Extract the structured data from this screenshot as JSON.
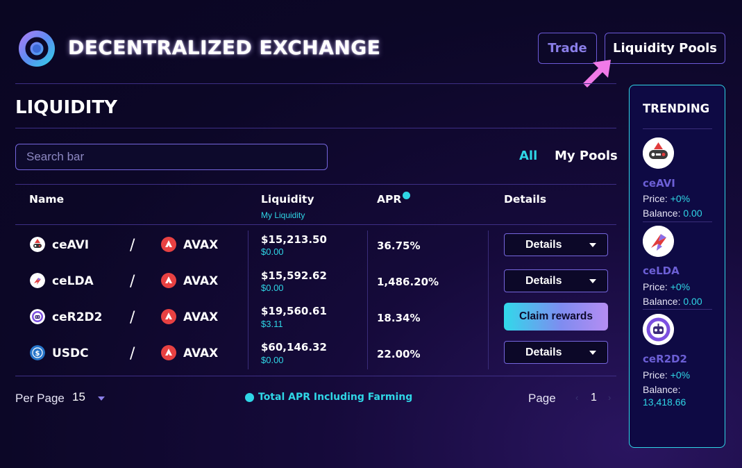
{
  "brand": {
    "title": "DECENTRALIZED EXCHANGE"
  },
  "nav": {
    "trade": "Trade",
    "liquidity_pools": "Liquidity Pools"
  },
  "page": {
    "title": "LIQUIDITY"
  },
  "search": {
    "placeholder": "Search bar"
  },
  "filters": {
    "all": "All",
    "my_pools": "My Pools"
  },
  "table": {
    "headers": {
      "name": "Name",
      "liquidity": "Liquidity",
      "my_liquidity": "My Liquidity",
      "apr": "APR",
      "details": "Details"
    },
    "rows": [
      {
        "token": "ceAVI",
        "pair": "AVAX",
        "liquidity": "$15,213.50",
        "my_liquidity": "$0.00",
        "apr": "36.75%",
        "action": "Details"
      },
      {
        "token": "ceLDA",
        "pair": "AVAX",
        "liquidity": "$15,592.62",
        "my_liquidity": "$0.00",
        "apr": "1,486.20%",
        "action": "Details"
      },
      {
        "token": "ceR2D2",
        "pair": "AVAX",
        "liquidity": "$19,560.61",
        "my_liquidity": "$3.11",
        "apr": "18.34%",
        "action": "Claim rewards"
      },
      {
        "token": "USDC",
        "pair": "AVAX",
        "liquidity": "$60,146.32",
        "my_liquidity": "$0.00",
        "apr": "22.00%",
        "action": "Details"
      }
    ],
    "separator": "/"
  },
  "footer": {
    "per_page_label": "Per Page",
    "per_page_value": "15",
    "total_apr": "Total APR Including Farming",
    "page_label": "Page",
    "page_number": "1",
    "prev": "‹",
    "next": "›"
  },
  "trending": {
    "title": "TRENDING",
    "price_label": "Price:",
    "balance_label": "Balance:",
    "items": [
      {
        "name": "ceAVI",
        "price": "+0%",
        "balance": "0.00"
      },
      {
        "name": "ceLDA",
        "price": "+0%",
        "balance": "0.00"
      },
      {
        "name": "ceR2D2",
        "price": "+0%",
        "balance": "13,418.66"
      }
    ]
  },
  "colors": {
    "accent_cyan": "#2fd6e6",
    "accent_purple": "#7566dd",
    "background": "#0c0727",
    "arrow_pink": "#f07ae8"
  }
}
